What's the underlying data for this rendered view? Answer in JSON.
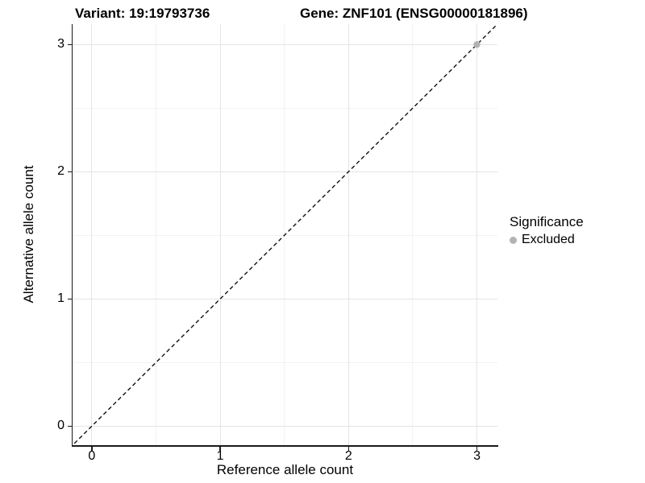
{
  "chart_data": {
    "type": "scatter",
    "title_left": "Variant: 19:19793736",
    "title_right": "Gene: ZNF101 (ENSG00000181896)",
    "xlabel": "Reference allele count",
    "ylabel": "Alternative allele count",
    "xlim": [
      -0.15,
      3.16
    ],
    "ylim": [
      -0.15,
      3.16
    ],
    "xticks": [
      0,
      1,
      2,
      3
    ],
    "yticks": [
      0,
      1,
      2,
      3
    ],
    "minor_xticks": [
      0.5,
      1.5,
      2.5
    ],
    "minor_yticks": [
      0.5,
      1.5,
      2.5
    ],
    "grid": true,
    "points": [
      {
        "x": 3,
        "y": 3,
        "series": "Excluded"
      }
    ],
    "identity_line": {
      "type": "abline",
      "slope": 1,
      "intercept": 0,
      "style": "dashed",
      "color": "#111111"
    },
    "legend": {
      "title": "Significance",
      "position": "right",
      "items": [
        {
          "label": "Excluded",
          "color": "#b3b3b3"
        }
      ]
    },
    "colors": {
      "major_grid": "#e4e4e4",
      "minor_grid": "#f2f2f2",
      "axis_line": "#1a1a1a",
      "point": "#b3b3b3",
      "background": "#ffffff"
    }
  }
}
